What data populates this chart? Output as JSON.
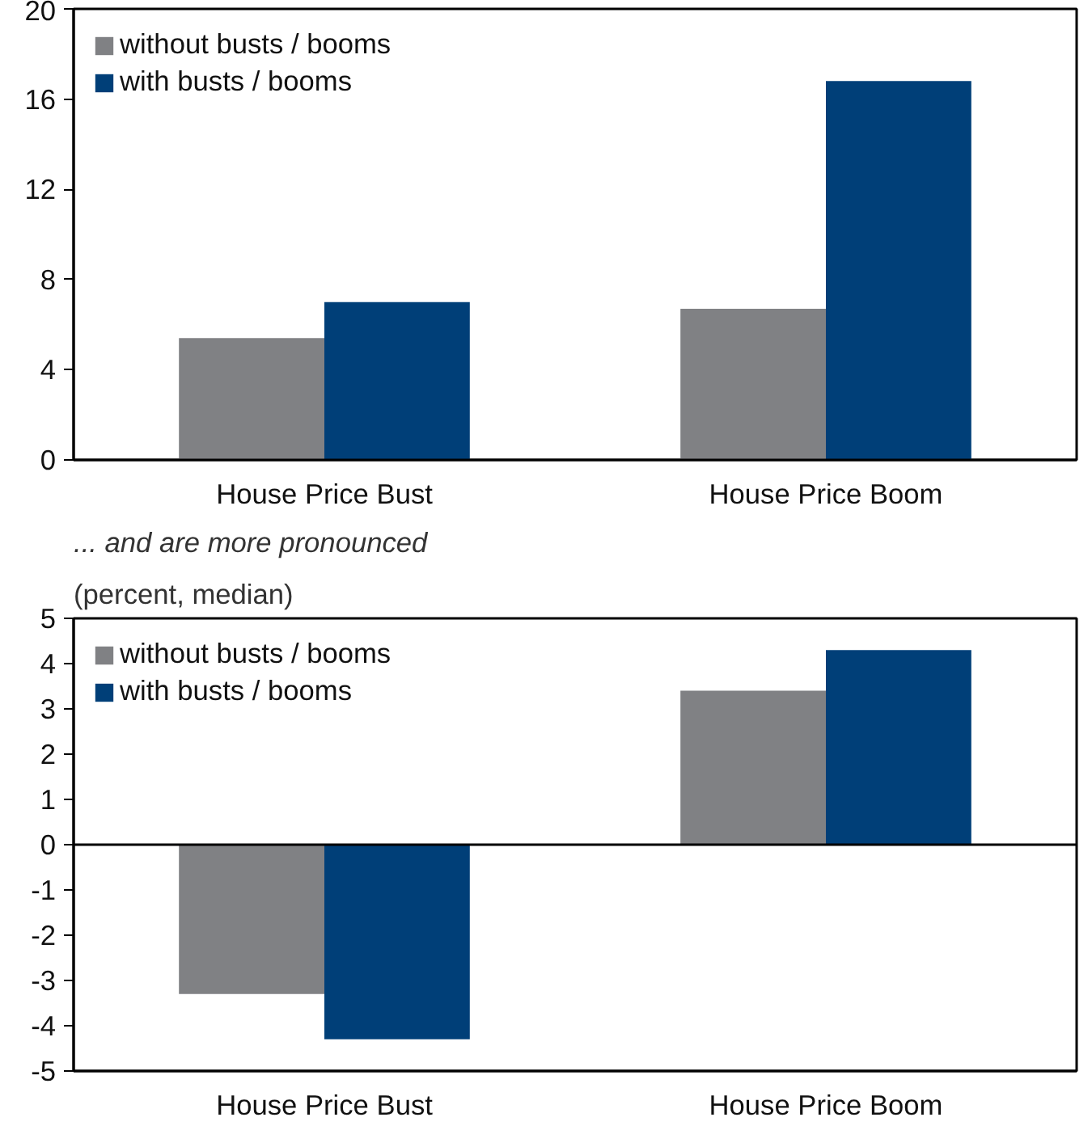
{
  "chart_data": [
    {
      "type": "bar",
      "categories": [
        "House Price Bust",
        "House Price Boom"
      ],
      "series": [
        {
          "name": "without busts / booms",
          "color": "#808184",
          "values": [
            5.4,
            6.7
          ]
        },
        {
          "name": "with busts / booms",
          "color": "#003f78",
          "values": [
            7.0,
            16.8
          ]
        }
      ],
      "ylim": [
        0,
        20
      ],
      "yticks": [
        0,
        4,
        8,
        12,
        16,
        20
      ],
      "grid": false,
      "legend": "top left"
    },
    {
      "type": "bar",
      "title": "... and are more pronounced",
      "subtitle": "(percent, median)",
      "categories": [
        "House Price Bust",
        "House Price Boom"
      ],
      "series": [
        {
          "name": "without busts / booms",
          "color": "#808184",
          "values": [
            -3.3,
            3.4
          ]
        },
        {
          "name": "with busts / booms",
          "color": "#003f78",
          "values": [
            -4.3,
            4.3
          ]
        }
      ],
      "ylim": [
        -5,
        5
      ],
      "yticks": [
        -5,
        -4,
        -3,
        -2,
        -1,
        0,
        1,
        2,
        3,
        4,
        5
      ],
      "grid": false,
      "legend": "top left",
      "ref_lines": [
        {
          "axis": "y",
          "value": 0
        }
      ]
    }
  ]
}
